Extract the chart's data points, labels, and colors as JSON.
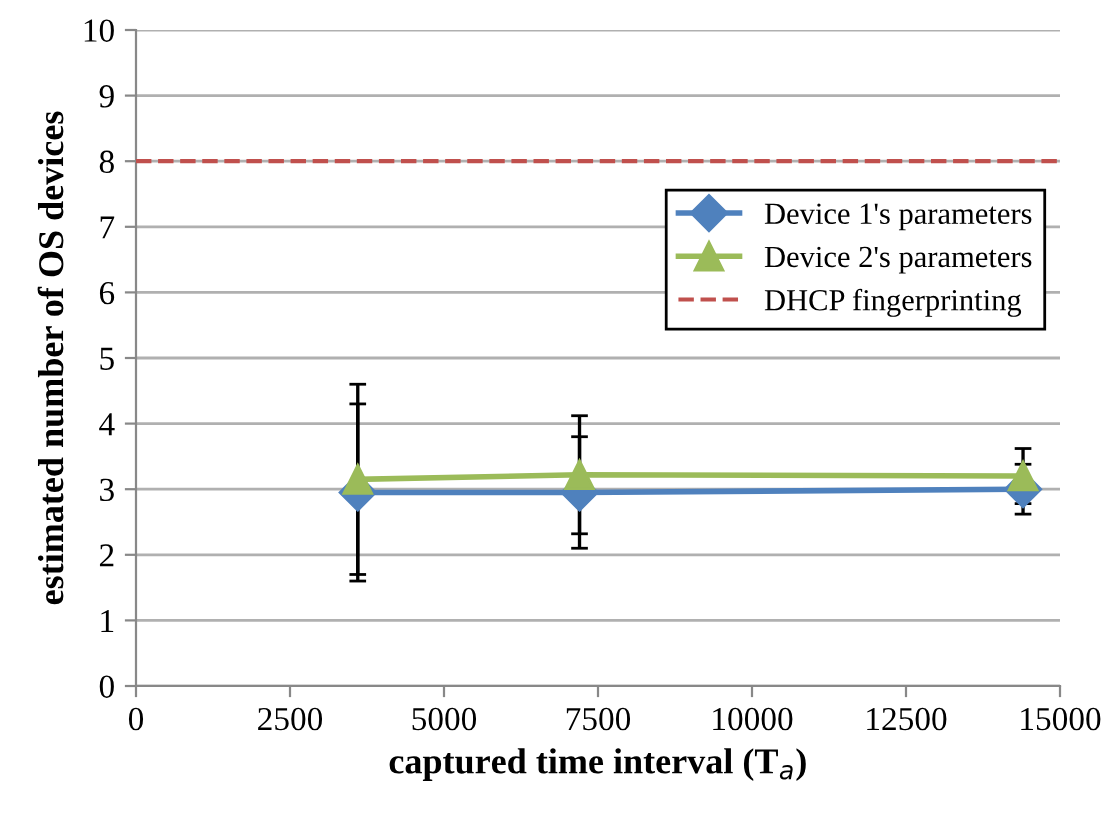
{
  "chart_data": {
    "type": "line",
    "xlabel": "captured time interval (T$_{a}$)",
    "ylabel": "estimated number of OS devices",
    "x": [
      3600,
      7200,
      14400
    ],
    "series": [
      {
        "name": "Device 1's parameters",
        "color": "#4f81bd",
        "marker": "diamond",
        "values": [
          2.95,
          2.95,
          3.0
        ],
        "errors": [
          1.35,
          0.85,
          0.38
        ]
      },
      {
        "name": "Device 2's parameters",
        "color": "#9bbb59",
        "marker": "triangle",
        "values": [
          3.15,
          3.22,
          3.2
        ],
        "errors": [
          1.45,
          0.9,
          0.42
        ]
      }
    ],
    "ref_lines": [
      {
        "axis": "y",
        "value": 8,
        "label": "DHCP fingerprinting",
        "color": "#c0504d",
        "line_style": "dashed"
      }
    ],
    "xlim": [
      0,
      15000
    ],
    "xticks": [
      0,
      2500,
      5000,
      7500,
      10000,
      12500,
      15000
    ],
    "ylim": [
      0,
      10
    ],
    "yticks": [
      0,
      1,
      2,
      3,
      4,
      5,
      6,
      7,
      8,
      9,
      10
    ],
    "grid": "y",
    "legend": "right"
  }
}
